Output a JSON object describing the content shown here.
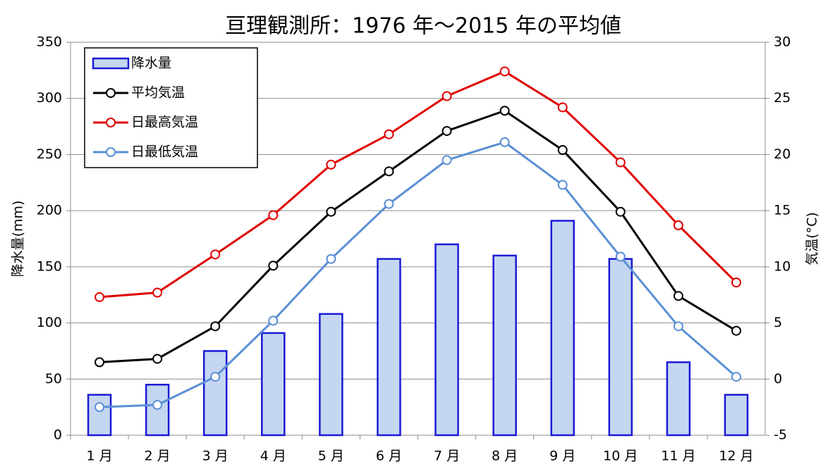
{
  "chart_data": {
    "type": "combo",
    "title": "亘理観測所：1976 年～2015 年の平均値",
    "ylabel": "降水量(mm)",
    "y2label": "気温(°C)",
    "categories": [
      "1 月",
      "2 月",
      "3 月",
      "4 月",
      "5 月",
      "6 月",
      "7 月",
      "8 月",
      "9 月",
      "10 月",
      "11 月",
      "12 月"
    ],
    "ylim": [
      0,
      350
    ],
    "yticks": [
      0,
      50,
      100,
      150,
      200,
      250,
      300,
      350
    ],
    "y2lim": [
      -5,
      30
    ],
    "y2ticks": [
      -5,
      0,
      5,
      10,
      15,
      20,
      25,
      30
    ],
    "grid": true,
    "legend": "top-left",
    "series": [
      {
        "name": "降水量",
        "type": "bar",
        "axis": "y",
        "color": "#c5d6f0",
        "edge": "#1a1ad6",
        "values": [
          36,
          45,
          75,
          91,
          108,
          157,
          170,
          160,
          191,
          157,
          65,
          36
        ]
      },
      {
        "name": "平均気温",
        "type": "line",
        "axis": "y2",
        "color": "#000000",
        "values": [
          1.5,
          1.8,
          4.7,
          10.1,
          14.9,
          18.5,
          22.1,
          23.9,
          20.4,
          14.9,
          7.4,
          4.3
        ]
      },
      {
        "name": "日最高気温",
        "type": "line",
        "axis": "y2",
        "color": "#e00000",
        "values": [
          7.3,
          7.7,
          11.1,
          14.6,
          19.1,
          21.8,
          25.2,
          27.4,
          24.2,
          19.3,
          13.7,
          8.6
        ]
      },
      {
        "name": "日最低気温",
        "type": "line",
        "axis": "y2",
        "color": "#5b8fd6",
        "values": [
          -2.5,
          -2.3,
          0.2,
          5.2,
          10.7,
          15.6,
          19.5,
          21.1,
          17.3,
          10.9,
          4.7,
          0.2
        ]
      }
    ]
  }
}
